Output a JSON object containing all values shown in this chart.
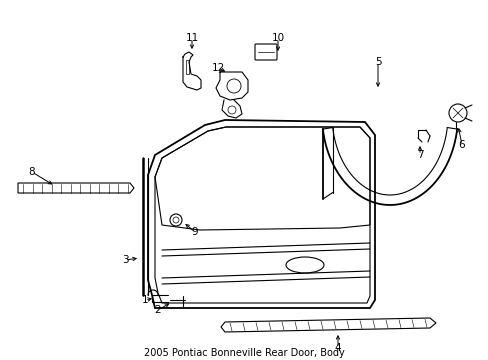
{
  "title": "2005 Pontiac Bonneville Rear Door, Body",
  "background_color": "#ffffff",
  "line_color": "#000000",
  "fig_width": 4.89,
  "fig_height": 3.6,
  "dpi": 100
}
